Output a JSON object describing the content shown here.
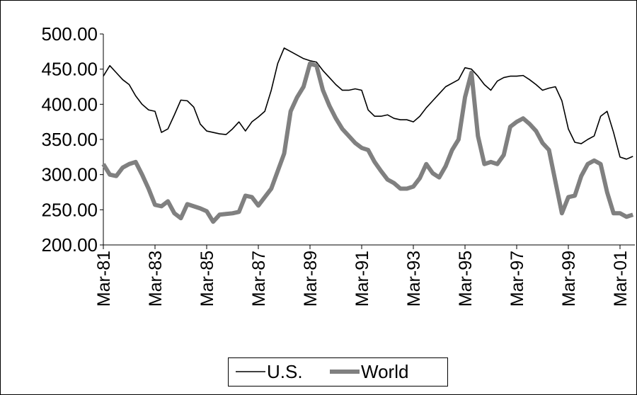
{
  "chart_data": {
    "type": "line",
    "categories": [
      "Mar-81",
      null,
      null,
      null,
      null,
      null,
      null,
      null,
      "Mar-83",
      null,
      null,
      null,
      null,
      null,
      null,
      null,
      "Mar-85",
      null,
      null,
      null,
      null,
      null,
      null,
      null,
      "Mar-87",
      null,
      null,
      null,
      null,
      null,
      null,
      null,
      "Mar-89",
      null,
      null,
      null,
      null,
      null,
      null,
      null,
      "Mar-91",
      null,
      null,
      null,
      null,
      null,
      null,
      null,
      "Mar-93",
      null,
      null,
      null,
      null,
      null,
      null,
      null,
      "Mar-95",
      null,
      null,
      null,
      null,
      null,
      null,
      null,
      "Mar-97",
      null,
      null,
      null,
      null,
      null,
      null,
      null,
      "Mar-99",
      null,
      null,
      null,
      null,
      null,
      null,
      null,
      "Mar-01",
      null,
      null
    ],
    "series": [
      {
        "name": "U.S.",
        "color": "#000000",
        "values": [
          440,
          455,
          445,
          435,
          428,
          412,
          400,
          392,
          390,
          360,
          365,
          385,
          406,
          405,
          396,
          372,
          362,
          360,
          358,
          357,
          365,
          375,
          362,
          375,
          382,
          390,
          420,
          458,
          480,
          475,
          470,
          465,
          462,
          460,
          448,
          438,
          428,
          420,
          420,
          422,
          420,
          392,
          383,
          383,
          385,
          380,
          378,
          378,
          375,
          383,
          395,
          405,
          415,
          425,
          430,
          435,
          452,
          450,
          440,
          428,
          420,
          433,
          438,
          440,
          440,
          441,
          435,
          428,
          420,
          423,
          425,
          405,
          365,
          346,
          344,
          350,
          355,
          383,
          390,
          360,
          325,
          322,
          326
        ]
      },
      {
        "name": "World",
        "color": "#808080",
        "values": [
          315,
          300,
          298,
          310,
          315,
          318,
          300,
          280,
          257,
          255,
          262,
          245,
          238,
          258,
          255,
          252,
          248,
          233,
          243,
          244,
          245,
          247,
          270,
          268,
          256,
          268,
          280,
          305,
          330,
          390,
          410,
          425,
          458,
          455,
          420,
          398,
          380,
          365,
          355,
          345,
          338,
          335,
          318,
          305,
          293,
          288,
          280,
          280,
          283,
          295,
          315,
          302,
          296,
          312,
          335,
          350,
          410,
          445,
          355,
          315,
          318,
          315,
          328,
          368,
          375,
          380,
          372,
          362,
          345,
          335,
          290,
          245,
          268,
          270,
          298,
          315,
          320,
          315,
          275,
          245,
          245,
          240,
          243
        ]
      }
    ],
    "ylim": [
      200,
      500
    ],
    "yticks": [
      {
        "value": 200,
        "label": "200.00"
      },
      {
        "value": 250,
        "label": "250.00"
      },
      {
        "value": 300,
        "label": "300.00"
      },
      {
        "value": 350,
        "label": "350.00"
      },
      {
        "value": 400,
        "label": "400.00"
      },
      {
        "value": 450,
        "label": "450.00"
      },
      {
        "value": 500,
        "label": "500.00"
      }
    ],
    "grid": false,
    "legend": "bottom"
  }
}
